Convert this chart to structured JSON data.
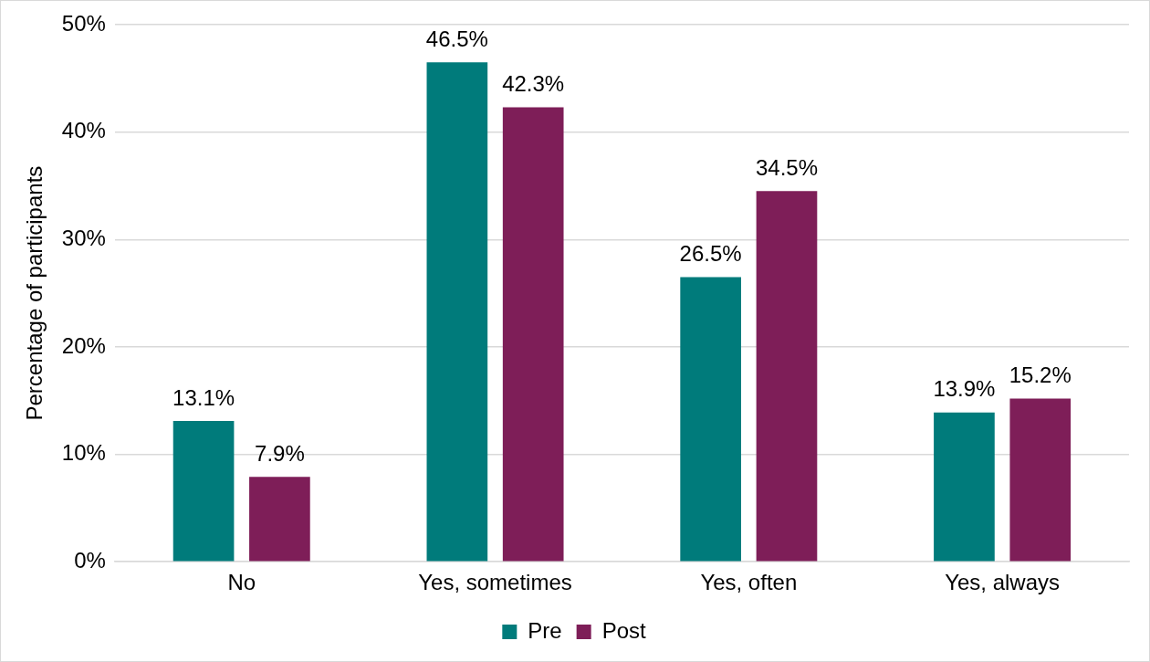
{
  "chart_data": {
    "type": "bar",
    "ylabel": "Percentage of participants",
    "categories": [
      "No",
      "Yes, sometimes",
      "Yes, often",
      "Yes, always"
    ],
    "series": [
      {
        "name": "Pre",
        "color": "#007b7b",
        "values": [
          13.1,
          46.5,
          26.5,
          13.9
        ],
        "value_labels": [
          "13.1%",
          "46.5%",
          "26.5%",
          "13.9%"
        ]
      },
      {
        "name": "Post",
        "color": "#7e1e58",
        "values": [
          7.9,
          42.3,
          34.5,
          15.2
        ],
        "value_labels": [
          "7.9%",
          "42.3%",
          "34.5%",
          "15.2%"
        ]
      }
    ],
    "ylim": [
      0,
      50
    ],
    "yticks": [
      {
        "value": 0,
        "label": "0%"
      },
      {
        "value": 10,
        "label": "10%"
      },
      {
        "value": 20,
        "label": "20%"
      },
      {
        "value": 30,
        "label": "30%"
      },
      {
        "value": 40,
        "label": "40%"
      },
      {
        "value": 50,
        "label": "50%"
      }
    ],
    "grid": "y",
    "legend": "bottom"
  }
}
